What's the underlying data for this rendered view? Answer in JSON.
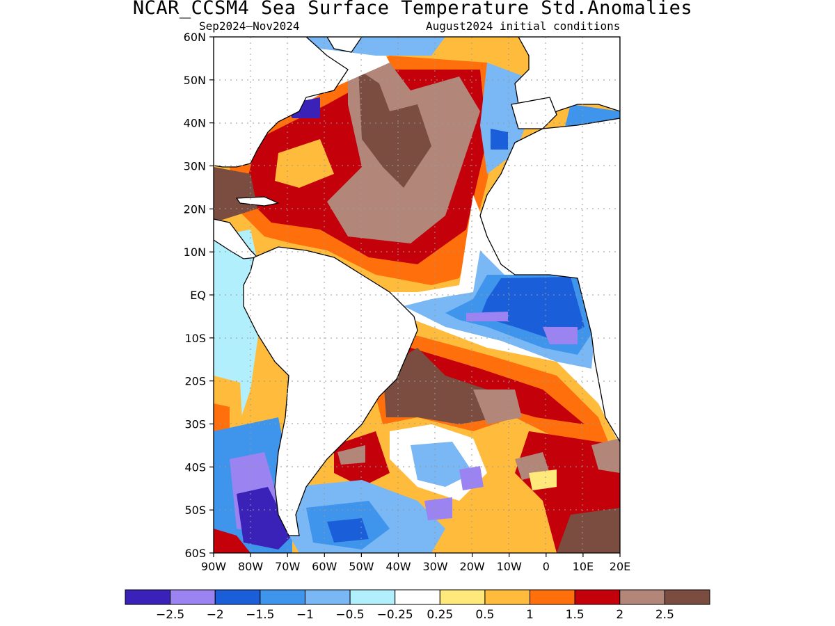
{
  "title": "NCAR_CCSM4 Sea Surface Temperature Std.Anomalies",
  "subtitle_left": "Sep2024–Nov2024",
  "subtitle_right": "August2024 initial conditions",
  "lat_labels": [
    "60N",
    "50N",
    "40N",
    "30N",
    "20N",
    "10N",
    "EQ",
    "10S",
    "20S",
    "30S",
    "40S",
    "50S",
    "60S"
  ],
  "lon_labels": [
    "90W",
    "80W",
    "70W",
    "60W",
    "50W",
    "40W",
    "30W",
    "20W",
    "10W",
    "0",
    "10E",
    "20E"
  ],
  "colorbar": {
    "colors": [
      "#3a22b8",
      "#9b84f2",
      "#1a5fd9",
      "#3f94ec",
      "#79b7f5",
      "#b0effb",
      "#ffffff",
      "#ffe97a",
      "#ffbc3c",
      "#ff6f0c",
      "#c4000a",
      "#b2877a",
      "#7a4d40"
    ],
    "labels": [
      "−2.5",
      "−2",
      "−1.5",
      "−1",
      "−0.5",
      "−0.25",
      "0.25",
      "0.5",
      "1",
      "1.5",
      "2",
      "2.5"
    ]
  }
}
